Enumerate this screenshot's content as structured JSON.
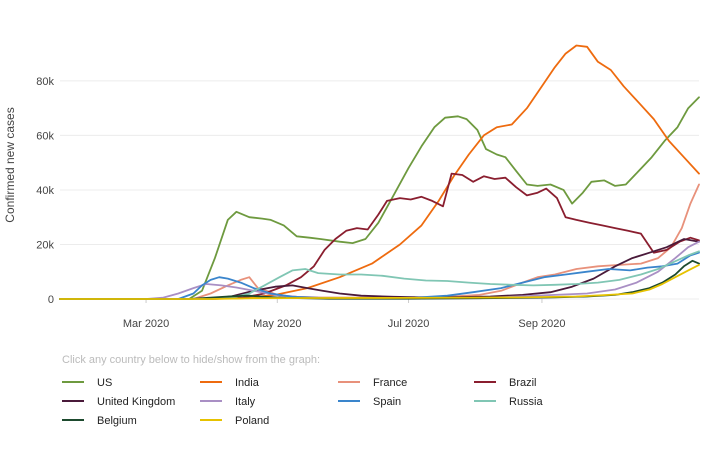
{
  "chart_data": {
    "type": "line",
    "title": "",
    "xlabel": "",
    "ylabel": "Confirmed new cases",
    "x_domain_days": [
      0,
      297
    ],
    "ylim": [
      0,
      95000
    ],
    "y_ticks": [
      0,
      20000,
      40000,
      60000,
      80000
    ],
    "y_tick_labels": [
      "0",
      "20k",
      "40k",
      "60k",
      "80k"
    ],
    "x_ticks": [
      {
        "day": 40,
        "label": "Mar 2020"
      },
      {
        "day": 101,
        "label": "May 2020"
      },
      {
        "day": 162,
        "label": "Jul 2020"
      },
      {
        "day": 224,
        "label": "Sep 2020"
      }
    ],
    "legend_hint": "Click any country below to hide/show from the graph:",
    "grid": true,
    "series": [
      {
        "name": "US",
        "color": "#6e9a3f",
        "points": [
          [
            0,
            0
          ],
          [
            60,
            0
          ],
          [
            66,
            3000
          ],
          [
            72,
            15000
          ],
          [
            78,
            29000
          ],
          [
            82,
            32000
          ],
          [
            88,
            30000
          ],
          [
            94,
            29500
          ],
          [
            98,
            29000
          ],
          [
            104,
            27000
          ],
          [
            110,
            23000
          ],
          [
            116,
            22500
          ],
          [
            121,
            22000
          ],
          [
            130,
            21000
          ],
          [
            136,
            20500
          ],
          [
            142,
            22000
          ],
          [
            148,
            28000
          ],
          [
            155,
            38000
          ],
          [
            162,
            48000
          ],
          [
            168,
            56000
          ],
          [
            174,
            63000
          ],
          [
            179,
            66500
          ],
          [
            185,
            67000
          ],
          [
            189,
            66000
          ],
          [
            194,
            62000
          ],
          [
            198,
            55000
          ],
          [
            203,
            53000
          ],
          [
            207,
            52000
          ],
          [
            212,
            47000
          ],
          [
            217,
            42000
          ],
          [
            222,
            41500
          ],
          [
            228,
            42000
          ],
          [
            234,
            40000
          ],
          [
            238,
            35000
          ],
          [
            243,
            39000
          ],
          [
            247,
            43000
          ],
          [
            253,
            43500
          ],
          [
            258,
            41500
          ],
          [
            263,
            42000
          ],
          [
            269,
            47000
          ],
          [
            275,
            52000
          ],
          [
            281,
            58000
          ],
          [
            287,
            63000
          ],
          [
            292,
            70000
          ],
          [
            297,
            74000
          ]
        ]
      },
      {
        "name": "India",
        "color": "#ee6b0f",
        "points": [
          [
            0,
            0
          ],
          [
            68,
            0
          ],
          [
            85,
            300
          ],
          [
            100,
            1500
          ],
          [
            115,
            4000
          ],
          [
            130,
            8000
          ],
          [
            145,
            13000
          ],
          [
            158,
            20000
          ],
          [
            168,
            27000
          ],
          [
            176,
            36000
          ],
          [
            183,
            45000
          ],
          [
            190,
            53000
          ],
          [
            197,
            60000
          ],
          [
            203,
            63000
          ],
          [
            210,
            64000
          ],
          [
            217,
            70000
          ],
          [
            224,
            78000
          ],
          [
            230,
            85000
          ],
          [
            235,
            90000
          ],
          [
            240,
            93000
          ],
          [
            245,
            92500
          ],
          [
            250,
            87000
          ],
          [
            256,
            84000
          ],
          [
            262,
            78000
          ],
          [
            269,
            72000
          ],
          [
            276,
            66000
          ],
          [
            283,
            58000
          ],
          [
            290,
            52000
          ],
          [
            297,
            46000
          ]
        ]
      },
      {
        "name": "France",
        "color": "#e8917b",
        "points": [
          [
            0,
            0
          ],
          [
            62,
            0
          ],
          [
            70,
            2000
          ],
          [
            78,
            5000
          ],
          [
            84,
            7000
          ],
          [
            88,
            8000
          ],
          [
            92,
            4000
          ],
          [
            96,
            3000
          ],
          [
            102,
            1200
          ],
          [
            110,
            800
          ],
          [
            120,
            600
          ],
          [
            140,
            500
          ],
          [
            160,
            600
          ],
          [
            180,
            800
          ],
          [
            195,
            1500
          ],
          [
            205,
            3000
          ],
          [
            215,
            6000
          ],
          [
            222,
            8000
          ],
          [
            230,
            9000
          ],
          [
            240,
            11000
          ],
          [
            250,
            12000
          ],
          [
            260,
            12500
          ],
          [
            270,
            13000
          ],
          [
            278,
            15000
          ],
          [
            284,
            19000
          ],
          [
            289,
            26000
          ],
          [
            293,
            35000
          ],
          [
            297,
            42000
          ]
        ]
      },
      {
        "name": "Brazil",
        "color": "#8a1e2f",
        "points": [
          [
            0,
            0
          ],
          [
            70,
            0
          ],
          [
            85,
            500
          ],
          [
            95,
            2000
          ],
          [
            105,
            5000
          ],
          [
            112,
            8000
          ],
          [
            118,
            12000
          ],
          [
            123,
            18000
          ],
          [
            128,
            22000
          ],
          [
            133,
            25000
          ],
          [
            138,
            26000
          ],
          [
            143,
            25500
          ],
          [
            148,
            31000
          ],
          [
            152,
            36000
          ],
          [
            158,
            37000
          ],
          [
            163,
            36500
          ],
          [
            168,
            37500
          ],
          [
            173,
            36000
          ],
          [
            178,
            34000
          ],
          [
            182,
            46000
          ],
          [
            187,
            45500
          ],
          [
            192,
            43000
          ],
          [
            197,
            45000
          ],
          [
            202,
            44000
          ],
          [
            207,
            44500
          ],
          [
            212,
            41000
          ],
          [
            217,
            38000
          ],
          [
            222,
            39000
          ],
          [
            226,
            40500
          ],
          [
            231,
            37000
          ],
          [
            235,
            30000
          ],
          [
            240,
            29000
          ],
          [
            246,
            28000
          ],
          [
            252,
            27000
          ],
          [
            258,
            26000
          ],
          [
            264,
            25000
          ],
          [
            270,
            24000
          ],
          [
            276,
            17000
          ],
          [
            282,
            18000
          ],
          [
            288,
            21000
          ],
          [
            293,
            22500
          ],
          [
            297,
            21500
          ]
        ]
      },
      {
        "name": "United Kingdom",
        "color": "#4a1a3a",
        "points": [
          [
            0,
            0
          ],
          [
            70,
            0
          ],
          [
            80,
            1000
          ],
          [
            90,
            3000
          ],
          [
            100,
            4500
          ],
          [
            108,
            5000
          ],
          [
            115,
            4000
          ],
          [
            122,
            3000
          ],
          [
            130,
            2000
          ],
          [
            140,
            1200
          ],
          [
            155,
            800
          ],
          [
            170,
            600
          ],
          [
            185,
            700
          ],
          [
            200,
            900
          ],
          [
            215,
            1500
          ],
          [
            228,
            2500
          ],
          [
            238,
            4500
          ],
          [
            248,
            7500
          ],
          [
            258,
            12000
          ],
          [
            266,
            15000
          ],
          [
            274,
            17000
          ],
          [
            282,
            19000
          ],
          [
            290,
            22000
          ],
          [
            297,
            21000
          ]
        ]
      },
      {
        "name": "Italy",
        "color": "#a98fc4",
        "points": [
          [
            0,
            0
          ],
          [
            40,
            0
          ],
          [
            48,
            500
          ],
          [
            55,
            2000
          ],
          [
            62,
            4000
          ],
          [
            68,
            5500
          ],
          [
            75,
            5000
          ],
          [
            82,
            4200
          ],
          [
            90,
            3000
          ],
          [
            100,
            1500
          ],
          [
            110,
            800
          ],
          [
            125,
            300
          ],
          [
            145,
            200
          ],
          [
            170,
            200
          ],
          [
            195,
            300
          ],
          [
            215,
            1000
          ],
          [
            230,
            1500
          ],
          [
            245,
            2000
          ],
          [
            258,
            3500
          ],
          [
            268,
            6000
          ],
          [
            278,
            10000
          ],
          [
            286,
            15000
          ],
          [
            292,
            19000
          ],
          [
            297,
            21000
          ]
        ]
      },
      {
        "name": "Spain",
        "color": "#3a85cc",
        "points": [
          [
            0,
            0
          ],
          [
            55,
            0
          ],
          [
            62,
            2000
          ],
          [
            66,
            5000
          ],
          [
            70,
            7000
          ],
          [
            74,
            8000
          ],
          [
            78,
            7500
          ],
          [
            84,
            6000
          ],
          [
            90,
            4000
          ],
          [
            98,
            2000
          ],
          [
            108,
            800
          ],
          [
            120,
            400
          ],
          [
            135,
            200
          ],
          [
            150,
            300
          ],
          [
            165,
            500
          ],
          [
            180,
            1200
          ],
          [
            192,
            2500
          ],
          [
            205,
            4000
          ],
          [
            215,
            6000
          ],
          [
            225,
            8000
          ],
          [
            235,
            9000
          ],
          [
            245,
            10000
          ],
          [
            255,
            11000
          ],
          [
            265,
            10500
          ],
          [
            273,
            11500
          ],
          [
            280,
            12000
          ],
          [
            287,
            13000
          ],
          [
            293,
            16000
          ],
          [
            297,
            17000
          ]
        ]
      },
      {
        "name": "Russia",
        "color": "#80c6b4",
        "points": [
          [
            0,
            0
          ],
          [
            70,
            0
          ],
          [
            80,
            500
          ],
          [
            88,
            2000
          ],
          [
            95,
            5000
          ],
          [
            102,
            8000
          ],
          [
            108,
            10500
          ],
          [
            114,
            11000
          ],
          [
            120,
            9500
          ],
          [
            130,
            9000
          ],
          [
            140,
            9000
          ],
          [
            150,
            8500
          ],
          [
            160,
            7500
          ],
          [
            170,
            6800
          ],
          [
            180,
            6600
          ],
          [
            190,
            6000
          ],
          [
            200,
            5500
          ],
          [
            210,
            5200
          ],
          [
            220,
            5000
          ],
          [
            230,
            5200
          ],
          [
            240,
            5500
          ],
          [
            250,
            6000
          ],
          [
            260,
            7000
          ],
          [
            270,
            9000
          ],
          [
            278,
            11000
          ],
          [
            285,
            13500
          ],
          [
            292,
            16000
          ],
          [
            297,
            17500
          ]
        ]
      },
      {
        "name": "Belgium",
        "color": "#1d4a2e",
        "points": [
          [
            0,
            0
          ],
          [
            60,
            0
          ],
          [
            70,
            500
          ],
          [
            80,
            1000
          ],
          [
            88,
            1200
          ],
          [
            95,
            800
          ],
          [
            105,
            400
          ],
          [
            125,
            100
          ],
          [
            160,
            100
          ],
          [
            195,
            300
          ],
          [
            215,
            400
          ],
          [
            230,
            600
          ],
          [
            245,
            900
          ],
          [
            258,
            1500
          ],
          [
            266,
            2500
          ],
          [
            274,
            4000
          ],
          [
            280,
            6000
          ],
          [
            286,
            9000
          ],
          [
            290,
            12000
          ],
          [
            294,
            14000
          ],
          [
            297,
            13000
          ]
        ]
      },
      {
        "name": "Poland",
        "color": "#e6c200",
        "points": [
          [
            0,
            0
          ],
          [
            70,
            0
          ],
          [
            90,
            300
          ],
          [
            120,
            350
          ],
          [
            160,
            400
          ],
          [
            190,
            500
          ],
          [
            215,
            600
          ],
          [
            240,
            900
          ],
          [
            255,
            1500
          ],
          [
            266,
            2000
          ],
          [
            274,
            3500
          ],
          [
            280,
            5500
          ],
          [
            286,
            8000
          ],
          [
            292,
            10500
          ],
          [
            297,
            12500
          ]
        ]
      }
    ]
  }
}
